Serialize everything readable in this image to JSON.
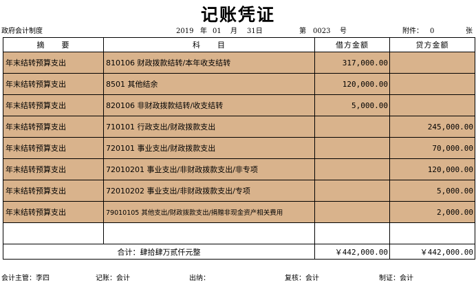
{
  "title": "记账凭证",
  "header": {
    "system": "政府会计制度",
    "year": "2019",
    "year_unit": "年",
    "month": "01",
    "month_unit": "月",
    "day": "31日",
    "no_prefix": "第",
    "no": "0023",
    "no_unit": "号",
    "attach_label": "附件：",
    "attach_count": "0",
    "attach_unit": "张"
  },
  "columns": {
    "summary": "摘　　要",
    "subject": "科　　目",
    "debit": "借方金额",
    "credit": "贷方金额"
  },
  "rows": [
    {
      "summary": "年末结转预算支出",
      "subject": "810106 财政拨款结转/本年收支结转",
      "debit": "317,000.00",
      "credit": ""
    },
    {
      "summary": "年末结转预算支出",
      "subject": "8501 其他结余",
      "debit": "120,000.00",
      "credit": ""
    },
    {
      "summary": "年末结转预算支出",
      "subject": "820106 非财政拨款结转/收支结转",
      "debit": "5,000.00",
      "credit": ""
    },
    {
      "summary": "年末结转预算支出",
      "subject": "710101 行政支出/财政拨款支出",
      "debit": "",
      "credit": "245,000.00"
    },
    {
      "summary": "年末结转预算支出",
      "subject": "720101 事业支出/财政拨款支出",
      "debit": "",
      "credit": "70,000.00"
    },
    {
      "summary": "年末结转预算支出",
      "subject": "72010201 事业支出/非财政拨款支出/非专项",
      "debit": "",
      "credit": "120,000.00"
    },
    {
      "summary": "年末结转预算支出",
      "subject": "72010202 事业支出/非财政拨款支出/专项",
      "debit": "",
      "credit": "5,000.00"
    },
    {
      "summary": "年末结转预算支出",
      "subject": "79010105 其他支出/财政拨款支出/捐赠非现金资产相关费用",
      "debit": "",
      "credit": "2,000.00"
    }
  ],
  "total": {
    "label": "合计：肆拾肆万贰仟元整",
    "debit": "￥442,000.00",
    "credit": "￥442,000.00"
  },
  "footer": {
    "supervisor": "会计主管：李四",
    "bookkeeper": "记账：会计",
    "cashier": "出纳：",
    "reviewer": "复核：会计",
    "maker": "制证：会计"
  }
}
